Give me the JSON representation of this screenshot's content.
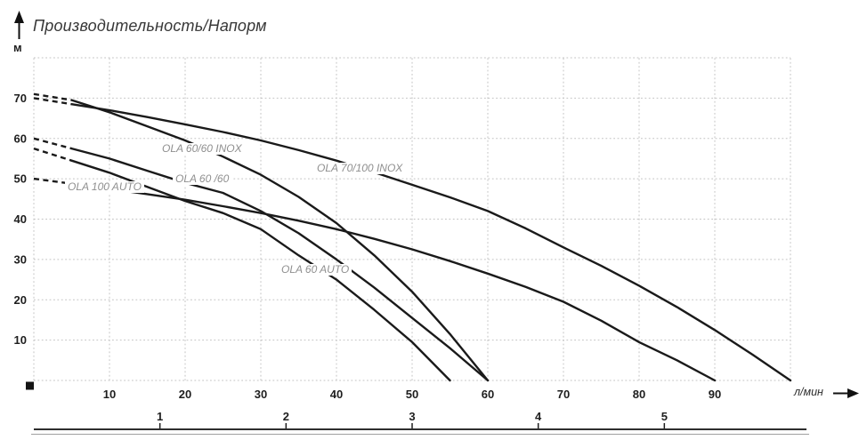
{
  "header": {
    "title": "Производительность/Напорм",
    "y_axis_unit": "м",
    "x_axis_unit": "л/мин"
  },
  "chart_data": {
    "type": "line",
    "title": "Производительность/Напорм",
    "xlabel": "л/мин",
    "ylabel": "м",
    "xlim": [
      0,
      100
    ],
    "ylim": [
      0,
      80
    ],
    "grid": true,
    "legend_position": "inline-labels",
    "x_ticks": [
      10,
      20,
      30,
      40,
      50,
      60,
      70,
      80,
      90
    ],
    "x_gridlines": [
      0,
      10,
      20,
      30,
      40,
      50,
      60,
      70,
      80,
      90,
      100
    ],
    "y_ticks": [
      10,
      20,
      30,
      40,
      50,
      60,
      70
    ],
    "y_gridlines": [
      0,
      10,
      20,
      30,
      40,
      50,
      60,
      70,
      80
    ],
    "secondary_x_ticks": [
      1,
      2,
      3,
      4,
      5
    ],
    "secondary_units_per_lmin": 16.6667,
    "line_color": "#1a1a1a",
    "grid_color": "#c3c3c3",
    "label_color": "#8f8f8f",
    "series": [
      {
        "name": "OLA 60/60 INOX",
        "points": [
          [
            0,
            71
          ],
          [
            5,
            69.5
          ],
          [
            10,
            66.5
          ],
          [
            15,
            63
          ],
          [
            20,
            59.5
          ],
          [
            25,
            55.5
          ],
          [
            30,
            51
          ],
          [
            35,
            45.5
          ],
          [
            40,
            39
          ],
          [
            45,
            31
          ],
          [
            50,
            22
          ],
          [
            55,
            11.5
          ],
          [
            60,
            0
          ]
        ]
      },
      {
        "name": "OLA 70/100 INOX",
        "points": [
          [
            0,
            70
          ],
          [
            5,
            68.5
          ],
          [
            10,
            67
          ],
          [
            15,
            65.3
          ],
          [
            20,
            63.5
          ],
          [
            25,
            61.6
          ],
          [
            30,
            59.5
          ],
          [
            35,
            57.1
          ],
          [
            40,
            54.5
          ],
          [
            45,
            51.6
          ],
          [
            50,
            48.5
          ],
          [
            55,
            45.4
          ],
          [
            60,
            42
          ],
          [
            65,
            37.7
          ],
          [
            70,
            33
          ],
          [
            75,
            28.4
          ],
          [
            80,
            23.5
          ],
          [
            85,
            18.2
          ],
          [
            90,
            12.5
          ],
          [
            95,
            6.4
          ],
          [
            100,
            0
          ]
        ]
      },
      {
        "name": "OLA 60 /60",
        "points": [
          [
            0,
            60
          ],
          [
            5,
            57.5
          ],
          [
            10,
            55
          ],
          [
            15,
            52
          ],
          [
            20,
            49
          ],
          [
            25,
            46.5
          ],
          [
            30,
            42
          ],
          [
            35,
            36.5
          ],
          [
            40,
            30
          ],
          [
            45,
            23
          ],
          [
            50,
            15.5
          ],
          [
            55,
            8
          ],
          [
            60,
            0
          ]
        ]
      },
      {
        "name": "OLA 60 AUTO",
        "points": [
          [
            0,
            57.5
          ],
          [
            5,
            54.5
          ],
          [
            10,
            51.5
          ],
          [
            15,
            48
          ],
          [
            20,
            44.5
          ],
          [
            25,
            41.5
          ],
          [
            30,
            37.5
          ],
          [
            35,
            31
          ],
          [
            40,
            25
          ],
          [
            45,
            17.5
          ],
          [
            50,
            9.5
          ],
          [
            55,
            0
          ]
        ]
      },
      {
        "name": "OLA 100 AUTO",
        "points": [
          [
            0,
            50
          ],
          [
            5,
            48.8
          ],
          [
            10,
            47.5
          ],
          [
            15,
            46.2
          ],
          [
            20,
            44.8
          ],
          [
            25,
            43.2
          ],
          [
            30,
            41.5
          ],
          [
            35,
            39.6
          ],
          [
            40,
            37.5
          ],
          [
            45,
            35.1
          ],
          [
            50,
            32.5
          ],
          [
            55,
            29.6
          ],
          [
            60,
            26.5
          ],
          [
            65,
            23.2
          ],
          [
            70,
            19.5
          ],
          [
            75,
            14.8
          ],
          [
            80,
            9.5
          ],
          [
            85,
            5
          ],
          [
            90,
            0
          ]
        ]
      }
    ]
  }
}
